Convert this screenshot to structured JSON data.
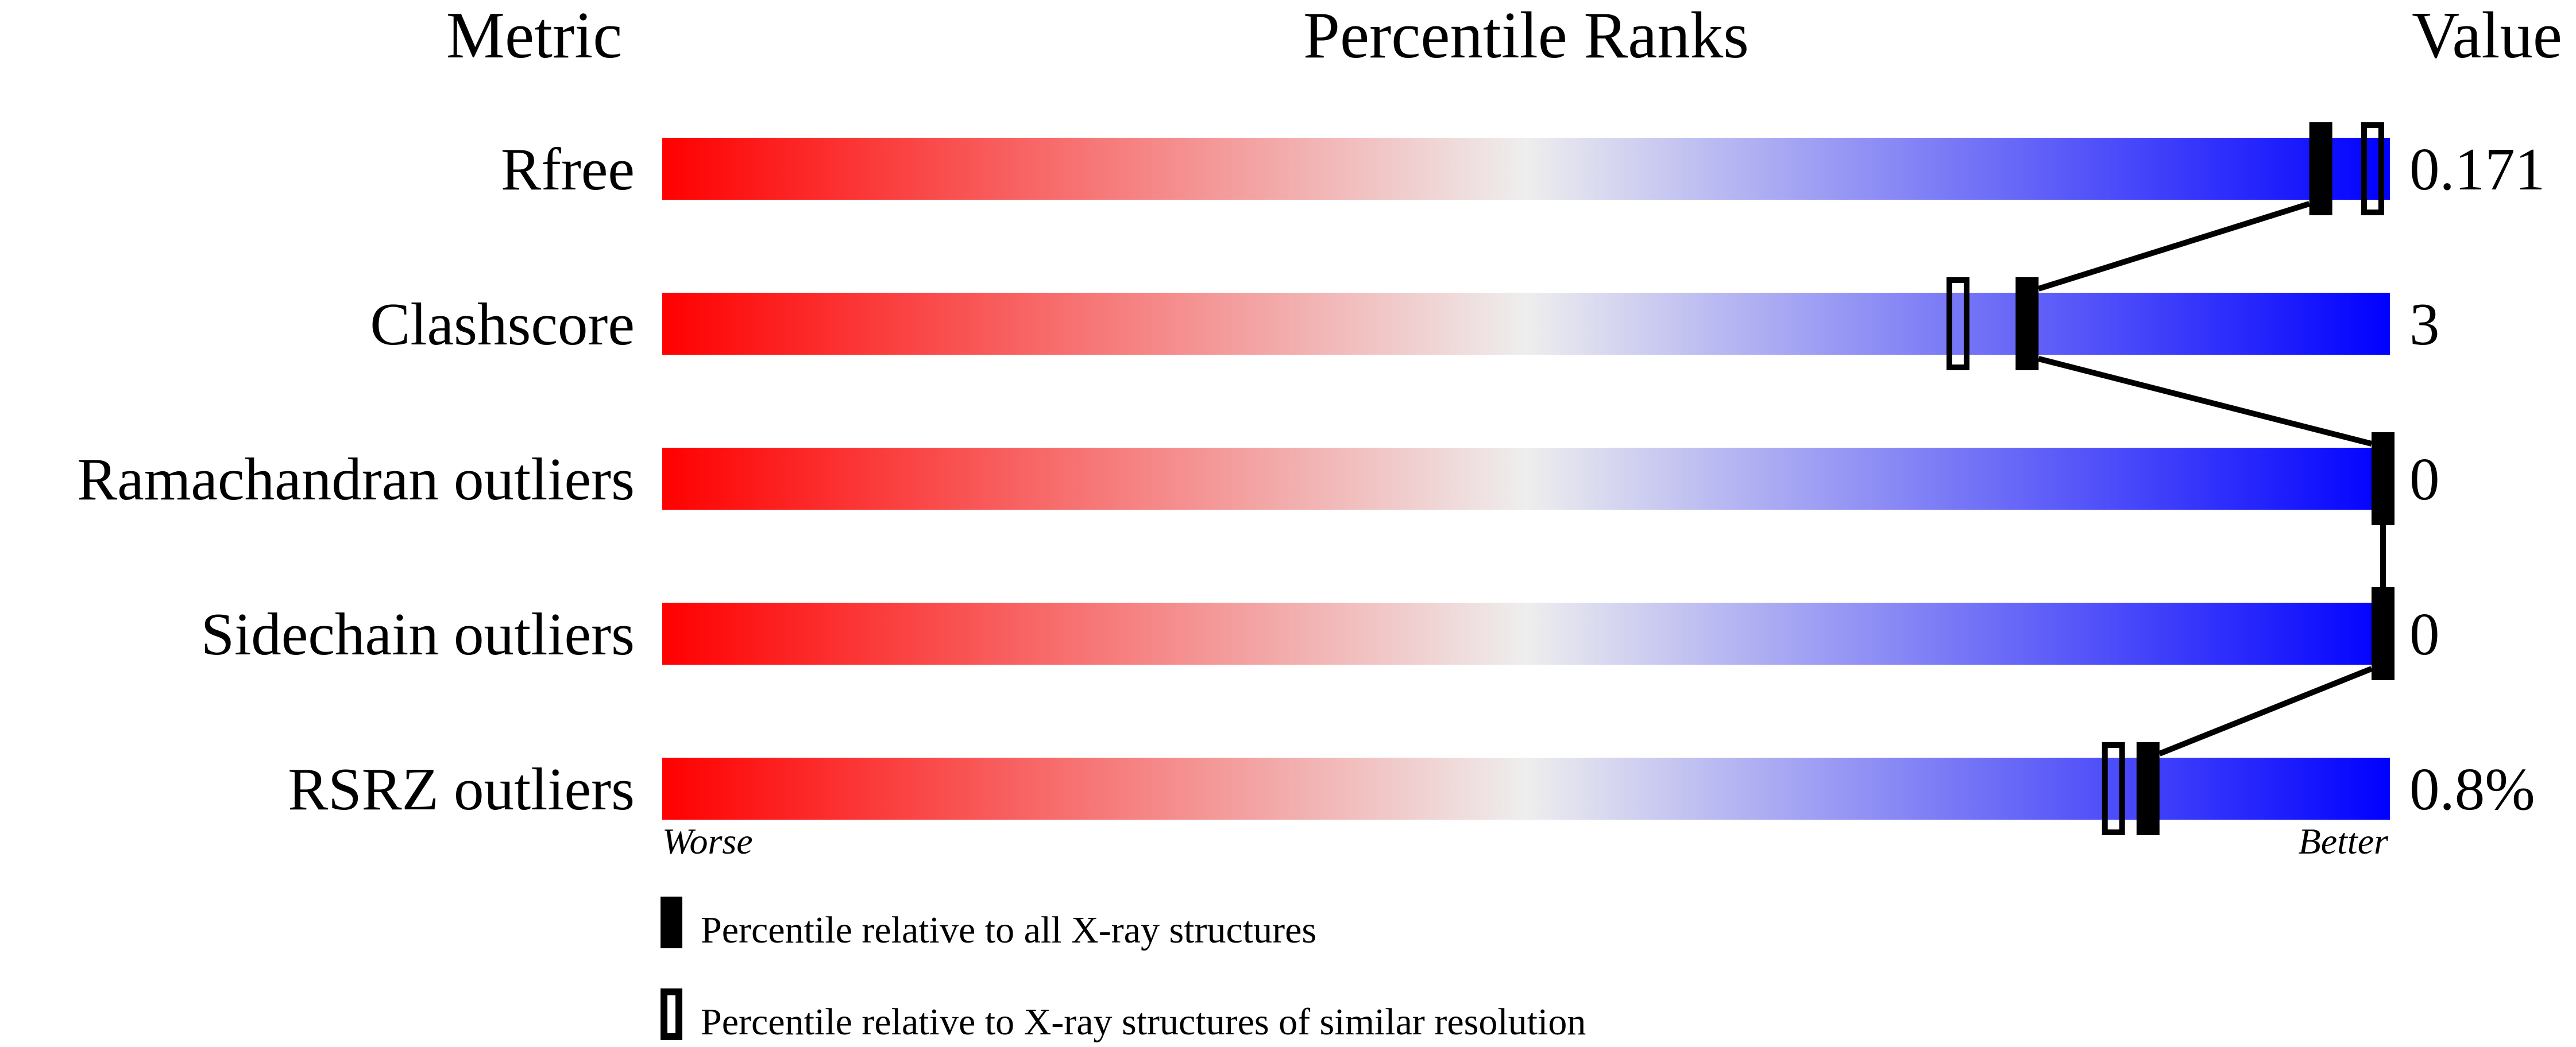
{
  "chart_data": {
    "type": "bar",
    "headers": {
      "metric": "Metric",
      "ranks": "Percentile Ranks",
      "value": "Value"
    },
    "metrics": [
      {
        "label": "Rfree",
        "value": "0.171",
        "percentile_all": 96,
        "percentile_similar": 99
      },
      {
        "label": "Clashscore",
        "value": "3",
        "percentile_all": 79,
        "percentile_similar": 75
      },
      {
        "label": "Ramachandran outliers",
        "value": "0",
        "percentile_all": 100,
        "percentile_similar": null
      },
      {
        "label": "Sidechain outliers",
        "value": "0",
        "percentile_all": 100,
        "percentile_similar": null
      },
      {
        "label": "RSRZ outliers",
        "value": "0.8%",
        "percentile_all": 86,
        "percentile_similar": 84
      }
    ],
    "xlim": [
      0,
      100
    ],
    "axis_left_label": "Worse",
    "axis_right_label": "Better",
    "gradient_colors": [
      "#ff0000",
      "#eeeeee",
      "#0000ff"
    ],
    "legend": [
      {
        "marker": "filled",
        "label": "Percentile relative to all X-ray structures"
      },
      {
        "marker": "open",
        "label": "Percentile relative to X-ray structures of similar resolution"
      }
    ],
    "legend_placement": "bottom-left"
  }
}
